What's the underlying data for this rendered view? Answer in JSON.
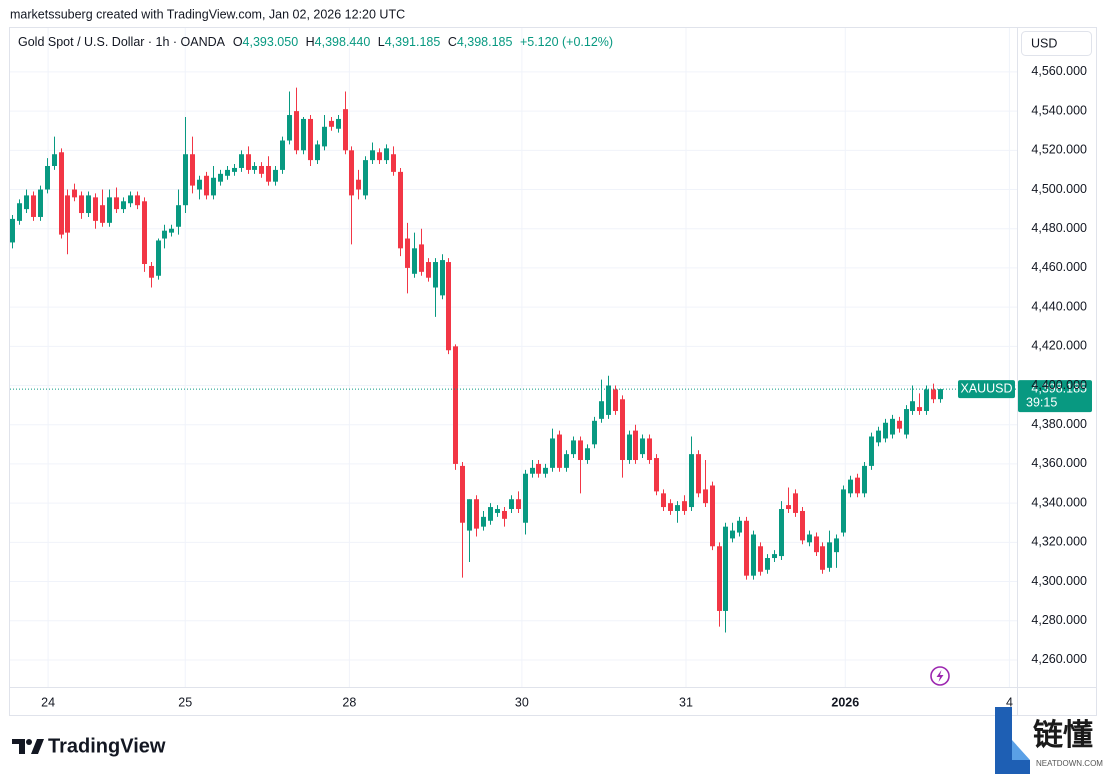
{
  "header": {
    "attribution": "marketssuberg created with TradingView.com, Jan 02, 2026 12:20 UTC"
  },
  "chart_data": {
    "type": "candlestick",
    "legend": {
      "symbol": "Gold Spot / U.S. Dollar · 1h · OANDA",
      "open_label": "O",
      "open": "4,393.050",
      "high_label": "H",
      "high": "4,398.440",
      "low_label": "L",
      "low": "4,391.185",
      "close_label": "C",
      "close": "4,398.185",
      "change": "+5.120 (+0.12%)"
    },
    "currency": "USD",
    "symbol_tag": "XAUUSD",
    "last_price": {
      "value": 4398.185,
      "label": "4,398.185"
    },
    "countdown": "39:15",
    "up_color": "#089981",
    "down_color": "#f23645",
    "grid": true,
    "xlim": [
      -0.3,
      144.8
    ],
    "xticks": [
      {
        "value": 5.2,
        "label": "24"
      },
      {
        "value": 25.0,
        "label": "25"
      },
      {
        "value": 48.7,
        "label": "28"
      },
      {
        "value": 73.6,
        "label": "30"
      },
      {
        "value": 97.3,
        "label": "31"
      },
      {
        "value": 120.3,
        "label": "2026"
      },
      {
        "value": 144.0,
        "label": "4"
      }
    ],
    "ylim": [
      4246.2,
      4582.4
    ],
    "yticks": [
      {
        "value": 4260,
        "label": "4,260.000"
      },
      {
        "value": 4280,
        "label": "4,280.000"
      },
      {
        "value": 4300,
        "label": "4,300.000"
      },
      {
        "value": 4320,
        "label": "4,320.000"
      },
      {
        "value": 4340,
        "label": "4,340.000"
      },
      {
        "value": 4360,
        "label": "4,360.000"
      },
      {
        "value": 4380,
        "label": "4,380.000"
      },
      {
        "value": 4400,
        "label": "4,400.000"
      },
      {
        "value": 4420,
        "label": "4,420.000"
      },
      {
        "value": 4440,
        "label": "4,440.000"
      },
      {
        "value": 4460,
        "label": "4,460.000"
      },
      {
        "value": 4480,
        "label": "4,480.000"
      },
      {
        "value": 4500,
        "label": "4,500.000"
      },
      {
        "value": 4520,
        "label": "4,520.000"
      },
      {
        "value": 4540,
        "label": "4,540.000"
      },
      {
        "value": 4560,
        "label": "4,560.000"
      }
    ],
    "open": [
      4473,
      4484,
      4490,
      4497,
      4486,
      4500,
      4512,
      4519,
      4497,
      4500,
      4497,
      4488,
      4496,
      4492,
      4483,
      4496,
      4490,
      4493,
      4497,
      4494,
      4461,
      4456,
      4475,
      4478,
      4481,
      4492,
      4518,
      4500,
      4507,
      4497,
      4504,
      4507,
      4509,
      4511,
      4518,
      4510,
      4512,
      4512,
      4504,
      4510,
      4525,
      4540,
      4520,
      4536,
      4515,
      4522,
      4535,
      4531,
      4541,
      4520,
      4505,
      4497,
      4515,
      4519,
      4515,
      4518,
      4509,
      4475,
      4457,
      4472,
      4463,
      4450,
      4446,
      4463,
      4420,
      4359,
      4326,
      4342,
      4328,
      4331,
      4335,
      4336,
      4337,
      4342,
      4330,
      4355,
      4360,
      4355,
      4358,
      4375,
      4358,
      4365,
      4372,
      4362,
      4370,
      4383,
      4385,
      4398,
      4393,
      4362,
      4377,
      4365,
      4373,
      4363,
      4345,
      4340,
      4336,
      4341,
      4338,
      4365,
      4347,
      4349,
      4318,
      4285,
      4322,
      4325,
      4331,
      4303,
      4318,
      4306,
      4312,
      4313,
      4339,
      4345,
      4336,
      4320,
      4323,
      4318,
      4307,
      4315,
      4325,
      4345,
      4353,
      4345,
      4359,
      4371,
      4373,
      4375,
      4382,
      4375,
      4387,
      4389,
      4387,
      4398,
      4393.05
    ],
    "high": [
      4487,
      4495,
      4500,
      4499,
      4502,
      4516,
      4527,
      4521,
      4500,
      4503,
      4499,
      4499,
      4498,
      4500,
      4500,
      4501,
      4496,
      4499,
      4499,
      4496,
      4463,
      4475,
      4482,
      4482,
      4500,
      4537,
      4527,
      4507,
      4509,
      4512,
      4510,
      4512,
      4513,
      4520,
      4522,
      4514,
      4514,
      4517,
      4512,
      4527,
      4550,
      4552,
      4537,
      4538,
      4525,
      4538,
      4537,
      4538,
      4550,
      4522,
      4510,
      4517,
      4524,
      4521,
      4523,
      4522,
      4511,
      4483,
      4478,
      4480,
      4465,
      4465,
      4467,
      4465,
      4421,
      4361,
      4342,
      4344,
      4336,
      4340,
      4339,
      4338,
      4344,
      4346,
      4357,
      4362,
      4362,
      4360,
      4378,
      4377,
      4367,
      4374,
      4374,
      4370,
      4384,
      4403,
      4405,
      4400,
      4395,
      4377,
      4380,
      4375,
      4375,
      4365,
      4347,
      4342,
      4341,
      4344,
      4374,
      4367,
      4362,
      4351,
      4320,
      4330,
      4330,
      4333,
      4333,
      4326,
      4320,
      4314,
      4316,
      4341,
      4348,
      4347,
      4338,
      4326,
      4325,
      4320,
      4326,
      4324,
      4349,
      4354,
      4355,
      4361,
      4376,
      4379,
      4383,
      4385,
      4384,
      4390,
      4400,
      4396,
      4400,
      4401,
      4398.44
    ],
    "low": [
      4470,
      4482,
      4488,
      4484,
      4484,
      4498,
      4510,
      4475,
      4467,
      4494,
      4485,
      4486,
      4480,
      4481,
      4481,
      4488,
      4488,
      4491,
      4490,
      4458,
      4450,
      4454,
      4470,
      4476,
      4477,
      4488,
      4498,
      4495,
      4495,
      4495,
      4502,
      4505,
      4507,
      4509,
      4508,
      4508,
      4506,
      4502,
      4502,
      4508,
      4523,
      4518,
      4518,
      4512,
      4513,
      4520,
      4530,
      4529,
      4518,
      4472,
      4495,
      4495,
      4513,
      4513,
      4513,
      4507,
      4466,
      4447,
      4455,
      4456,
      4453,
      4435,
      4444,
      4416,
      4357,
      4302,
      4310,
      4323,
      4326,
      4329,
      4333,
      4328,
      4335,
      4335,
      4324,
      4353,
      4353,
      4353,
      4356,
      4356,
      4356,
      4363,
      4345,
      4360,
      4368,
      4381,
      4383,
      4385,
      4353,
      4360,
      4360,
      4363,
      4360,
      4344,
      4336,
      4334,
      4330,
      4334,
      4336,
      4343,
      4338,
      4316,
      4277,
      4274,
      4320,
      4323,
      4301,
      4301,
      4303,
      4304,
      4310,
      4311,
      4335,
      4333,
      4319,
      4318,
      4313,
      4304,
      4305,
      4307,
      4323,
      4343,
      4343,
      4343,
      4357,
      4369,
      4371,
      4373,
      4376,
      4373,
      4385,
      4385,
      4385,
      4391,
      4391.185
    ],
    "close": [
      4485,
      4493,
      4497,
      4486,
      4500,
      4512,
      4518,
      4477,
      4478,
      4496,
      4488,
      4497,
      4484,
      4483,
      4496,
      4490,
      4494,
      4497,
      4492,
      4462,
      4455,
      4474,
      4479,
      4480,
      4492,
      4518,
      4502,
      4505,
      4497,
      4506,
      4508,
      4510,
      4511,
      4518,
      4510,
      4512,
      4508,
      4504,
      4510,
      4525,
      4538,
      4520,
      4536,
      4515,
      4523,
      4532,
      4532,
      4536,
      4520,
      4497,
      4500,
      4515,
      4520,
      4515,
      4521,
      4509,
      4470,
      4460,
      4470,
      4458,
      4455,
      4463,
      4464,
      4418,
      4360,
      4330,
      4342,
      4327,
      4333,
      4338,
      4337,
      4332,
      4342,
      4337,
      4355,
      4358,
      4355,
      4358,
      4373,
      4358,
      4365,
      4372,
      4362,
      4368,
      4382,
      4392,
      4400,
      4387,
      4362,
      4375,
      4362,
      4373,
      4362,
      4346,
      4338,
      4336,
      4339,
      4336,
      4365,
      4345,
      4340,
      4318,
      4285,
      4328,
      4326,
      4331,
      4303,
      4324,
      4305,
      4312,
      4314,
      4337,
      4337,
      4335,
      4321,
      4324,
      4315,
      4306,
      4320,
      4322,
      4347,
      4352,
      4345,
      4359,
      4374,
      4377,
      4381,
      4383,
      4378,
      4388,
      4392,
      4387,
      4398,
      4393,
      4398.185
    ]
  },
  "footer": {
    "brand": "TradingView"
  },
  "watermark": {
    "name": "链懂",
    "site": "NEATDOWN.COM"
  }
}
